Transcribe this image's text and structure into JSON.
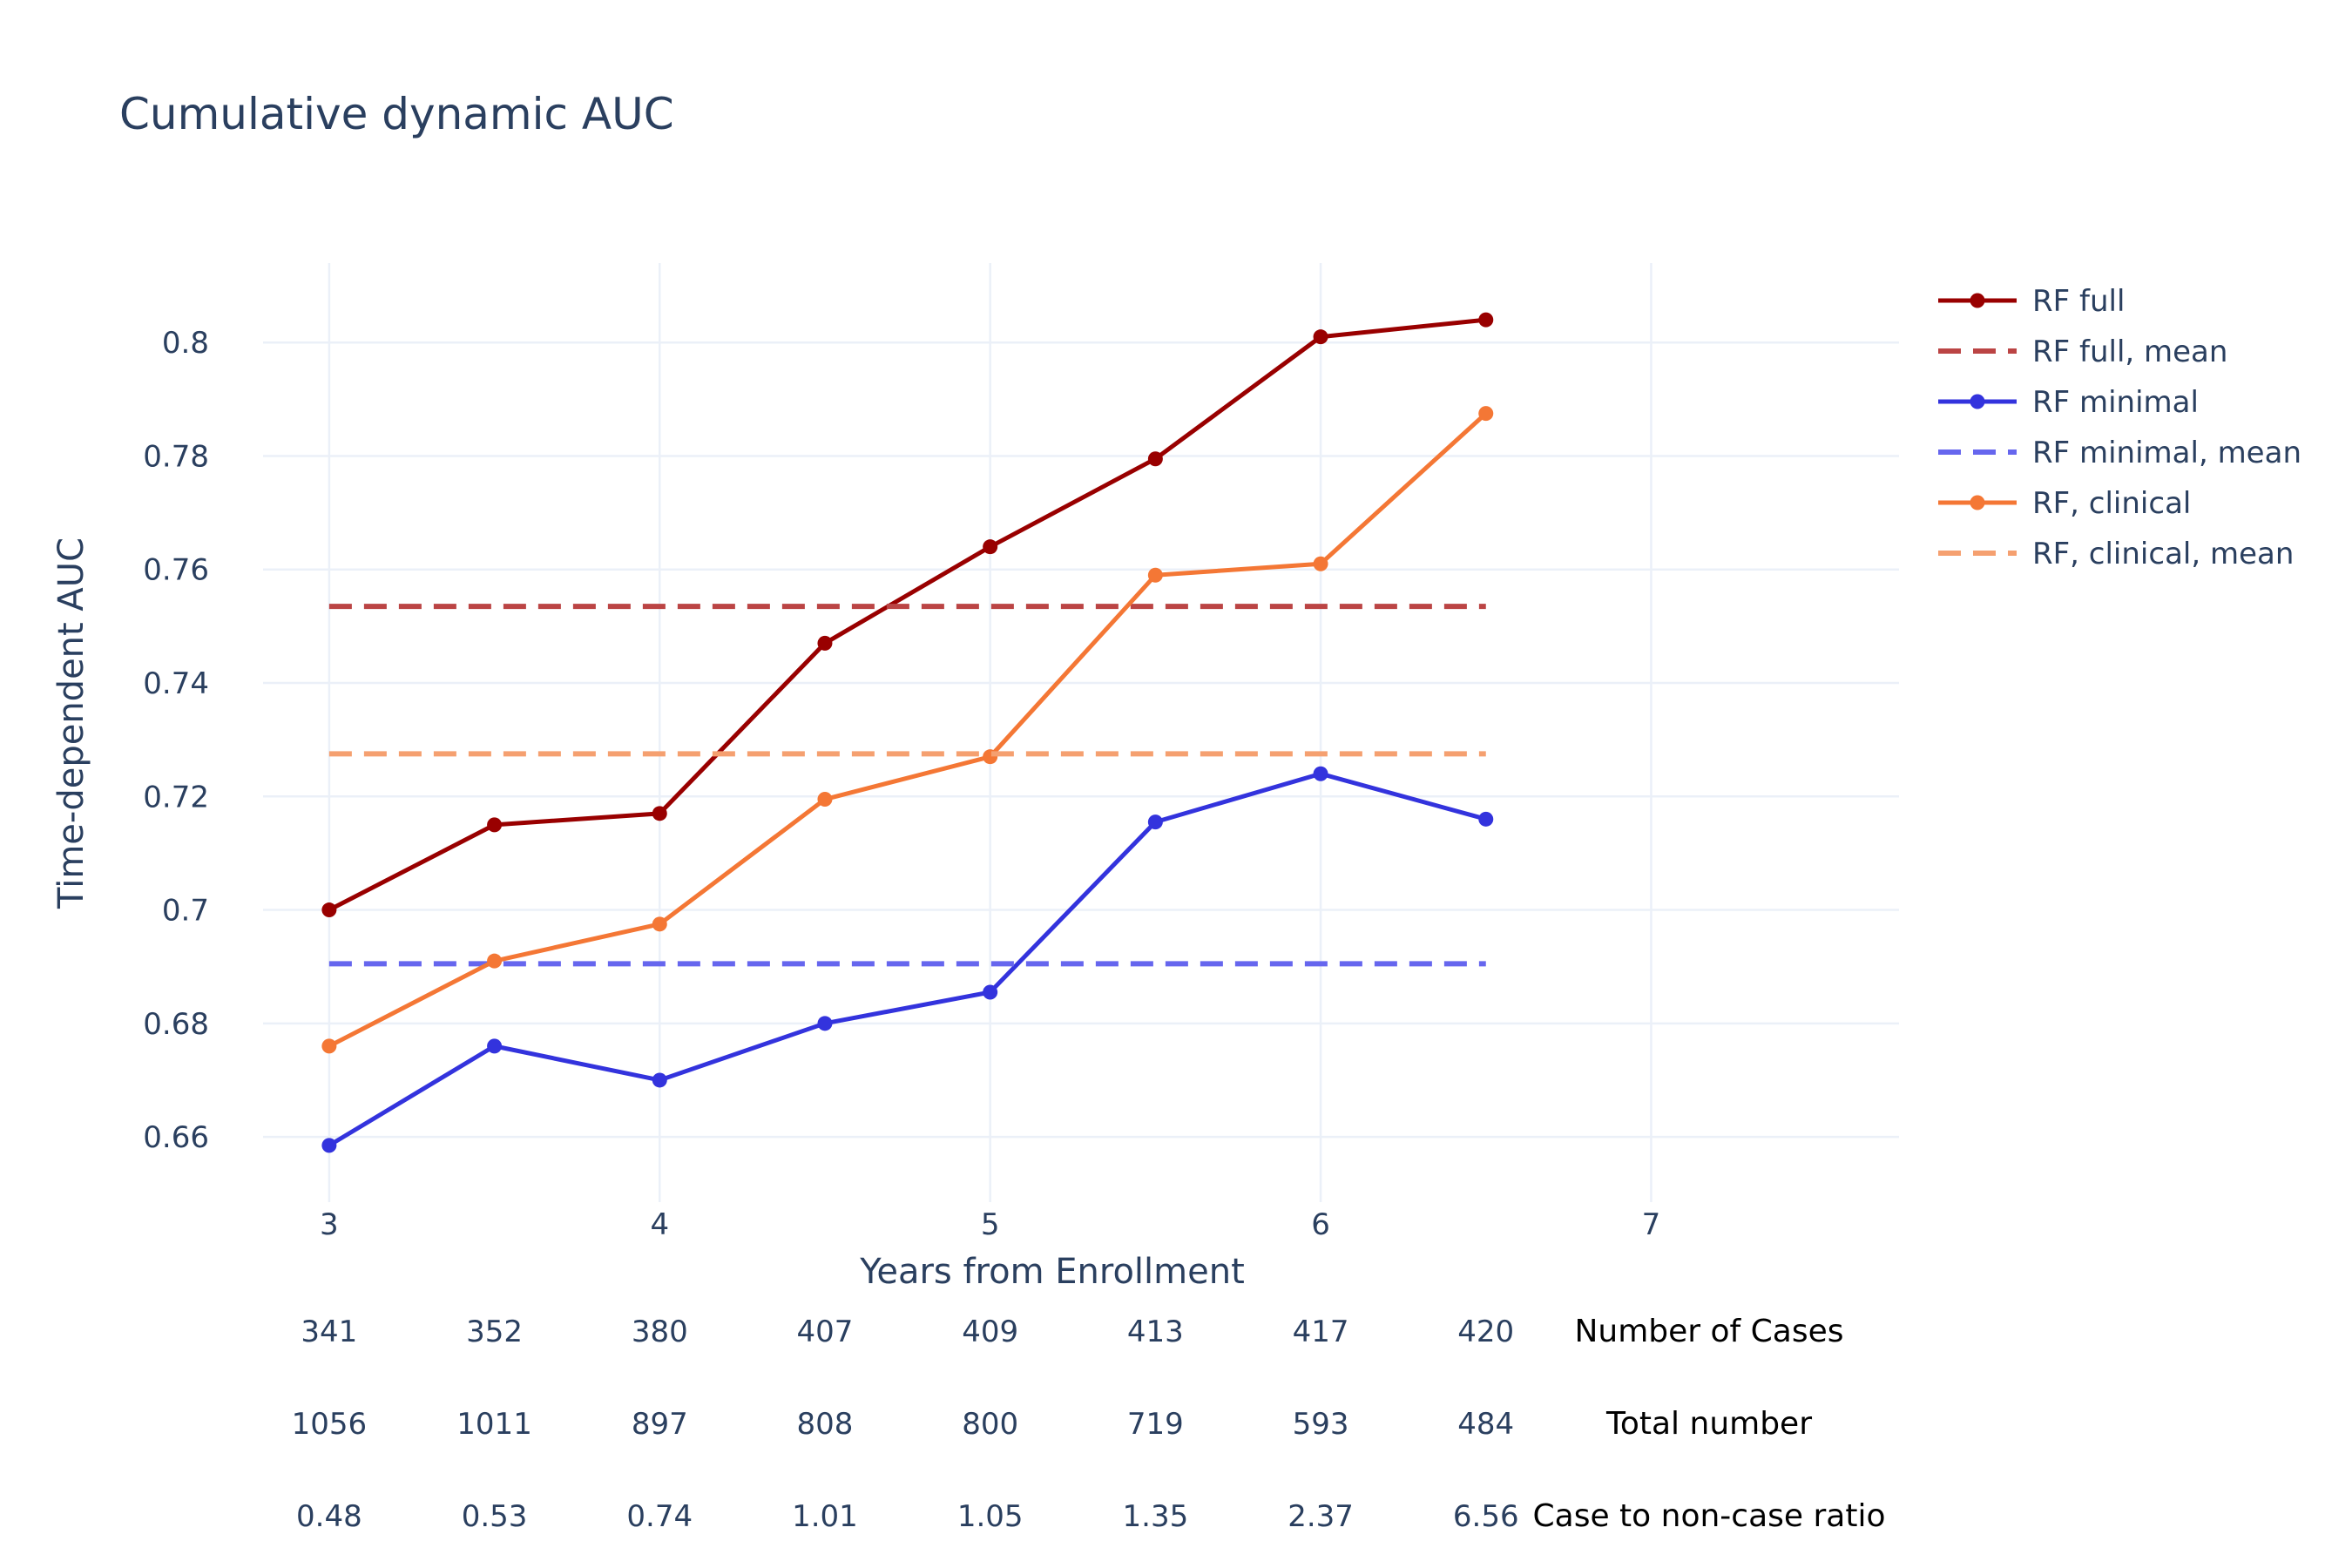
{
  "chart_data": {
    "type": "line",
    "title": "Cumulative dynamic AUC",
    "xlabel": "Years from Enrollment",
    "ylabel": "Time-dependent AUC",
    "xlim": [
      2.8,
      7.75
    ],
    "ylim": [
      0.6485,
      0.814
    ],
    "x_ticks": [
      3,
      4,
      5,
      6,
      7
    ],
    "x_tick_labels": [
      "3",
      "4",
      "5",
      "6",
      "7"
    ],
    "y_ticks": [
      0.66,
      0.68,
      0.7,
      0.72,
      0.74,
      0.76,
      0.78,
      0.8
    ],
    "y_tick_labels": [
      "0.66",
      "0.68",
      "0.7",
      "0.72",
      "0.74",
      "0.76",
      "0.78",
      "0.8"
    ],
    "grid": true,
    "legend_position": "top-right outside",
    "x": [
      3,
      3.5,
      4,
      4.5,
      5,
      5.5,
      6,
      6.5
    ],
    "series": [
      {
        "name": "RF full",
        "style": "lines+markers",
        "color": "#990000",
        "values": [
          0.7,
          0.715,
          0.717,
          0.747,
          0.764,
          0.7795,
          0.801,
          0.804
        ]
      },
      {
        "name": "RF full, mean",
        "style": "dash",
        "color": "#bb4444",
        "values": [
          0.7535,
          0.7535,
          0.7535,
          0.7535,
          0.7535,
          0.7535,
          0.7535,
          0.7535
        ]
      },
      {
        "name": "RF minimal",
        "style": "lines+markers",
        "color": "#3333dd",
        "values": [
          0.6585,
          0.676,
          0.67,
          0.68,
          0.6855,
          0.7155,
          0.724,
          0.716
        ]
      },
      {
        "name": "RF minimal, mean",
        "style": "dash",
        "color": "#6666ee",
        "values": [
          0.6905,
          0.6905,
          0.6905,
          0.6905,
          0.6905,
          0.6905,
          0.6905,
          0.6905
        ]
      },
      {
        "name": "RF, clinical",
        "style": "lines+markers",
        "color": "#f47735",
        "values": [
          0.676,
          0.691,
          0.6975,
          0.7195,
          0.727,
          0.759,
          0.761,
          0.7875
        ]
      },
      {
        "name": "RF, clinical, mean",
        "style": "dash",
        "color": "#f5a070",
        "values": [
          0.7275,
          0.7275,
          0.7275,
          0.7275,
          0.7275,
          0.7275,
          0.7275,
          0.7275
        ]
      }
    ],
    "table": {
      "rows": [
        {
          "label": "Number of Cases",
          "values": [
            "341",
            "352",
            "380",
            "407",
            "409",
            "413",
            "417",
            "420"
          ]
        },
        {
          "label": "Total number",
          "values": [
            "1056",
            "1011",
            "897",
            "808",
            "800",
            "719",
            "593",
            "484"
          ]
        },
        {
          "label": "Case to non-case ratio",
          "values": [
            "0.48",
            "0.53",
            "0.74",
            "1.01",
            "1.05",
            "1.35",
            "2.37",
            "6.56"
          ]
        }
      ]
    }
  }
}
